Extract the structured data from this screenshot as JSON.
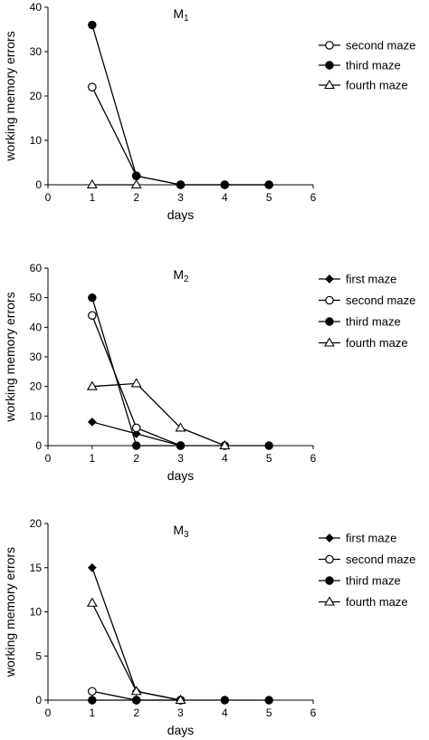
{
  "chart_data": [
    {
      "type": "line",
      "title": "M",
      "title_subscript": "1",
      "xlabel": "days",
      "ylabel": "working memory errors",
      "xlim": [
        0,
        6
      ],
      "ylim": [
        0,
        40
      ],
      "xticks": [
        0,
        1,
        2,
        3,
        4,
        5,
        6
      ],
      "yticks": [
        0,
        10,
        20,
        30,
        40
      ],
      "legend_position": "right",
      "series": [
        {
          "name": "second maze",
          "marker": "circle-open",
          "x": [
            1,
            2,
            3,
            4,
            5
          ],
          "y": [
            22,
            2,
            0,
            0,
            0
          ]
        },
        {
          "name": "third maze",
          "marker": "circle-filled",
          "x": [
            1,
            2,
            3,
            4,
            5
          ],
          "y": [
            36,
            2,
            0,
            0,
            0
          ]
        },
        {
          "name": "fourth maze",
          "marker": "triangle-open",
          "x": [
            1,
            2
          ],
          "y": [
            0,
            0
          ]
        }
      ]
    },
    {
      "type": "line",
      "title": "M",
      "title_subscript": "2",
      "xlabel": "days",
      "ylabel": "working memory errors",
      "xlim": [
        0,
        6
      ],
      "ylim": [
        0,
        60
      ],
      "xticks": [
        0,
        1,
        2,
        3,
        4,
        5,
        6
      ],
      "yticks": [
        0,
        10,
        20,
        30,
        40,
        50,
        60
      ],
      "legend_position": "right",
      "series": [
        {
          "name": "first maze",
          "marker": "diamond-filled",
          "x": [
            1,
            2,
            3
          ],
          "y": [
            8,
            4,
            0
          ]
        },
        {
          "name": "second maze",
          "marker": "circle-open",
          "x": [
            1,
            2,
            3
          ],
          "y": [
            44,
            6,
            0
          ]
        },
        {
          "name": "third maze",
          "marker": "circle-filled",
          "x": [
            1,
            2,
            3,
            4,
            5
          ],
          "y": [
            50,
            0,
            0,
            0,
            0
          ]
        },
        {
          "name": "fourth maze",
          "marker": "triangle-open",
          "x": [
            1,
            2,
            3,
            4
          ],
          "y": [
            20,
            21,
            6,
            0
          ]
        }
      ]
    },
    {
      "type": "line",
      "title": "M",
      "title_subscript": "3",
      "xlabel": "days",
      "ylabel": "working memory errors",
      "xlim": [
        0,
        6
      ],
      "ylim": [
        0,
        20
      ],
      "xticks": [
        0,
        1,
        2,
        3,
        4,
        5,
        6
      ],
      "yticks": [
        0,
        5,
        10,
        15,
        20
      ],
      "legend_position": "right",
      "series": [
        {
          "name": "first maze",
          "marker": "diamond-filled",
          "x": [
            1,
            2,
            3
          ],
          "y": [
            15,
            1,
            0
          ]
        },
        {
          "name": "second maze",
          "marker": "circle-open",
          "x": [
            1,
            2,
            3
          ],
          "y": [
            1,
            0,
            0
          ]
        },
        {
          "name": "third maze",
          "marker": "circle-filled",
          "x": [
            1,
            2,
            3,
            4,
            5
          ],
          "y": [
            0,
            0,
            0,
            0,
            0
          ]
        },
        {
          "name": "fourth maze",
          "marker": "triangle-open",
          "x": [
            1,
            2,
            3
          ],
          "y": [
            11,
            1,
            0
          ]
        }
      ]
    }
  ]
}
